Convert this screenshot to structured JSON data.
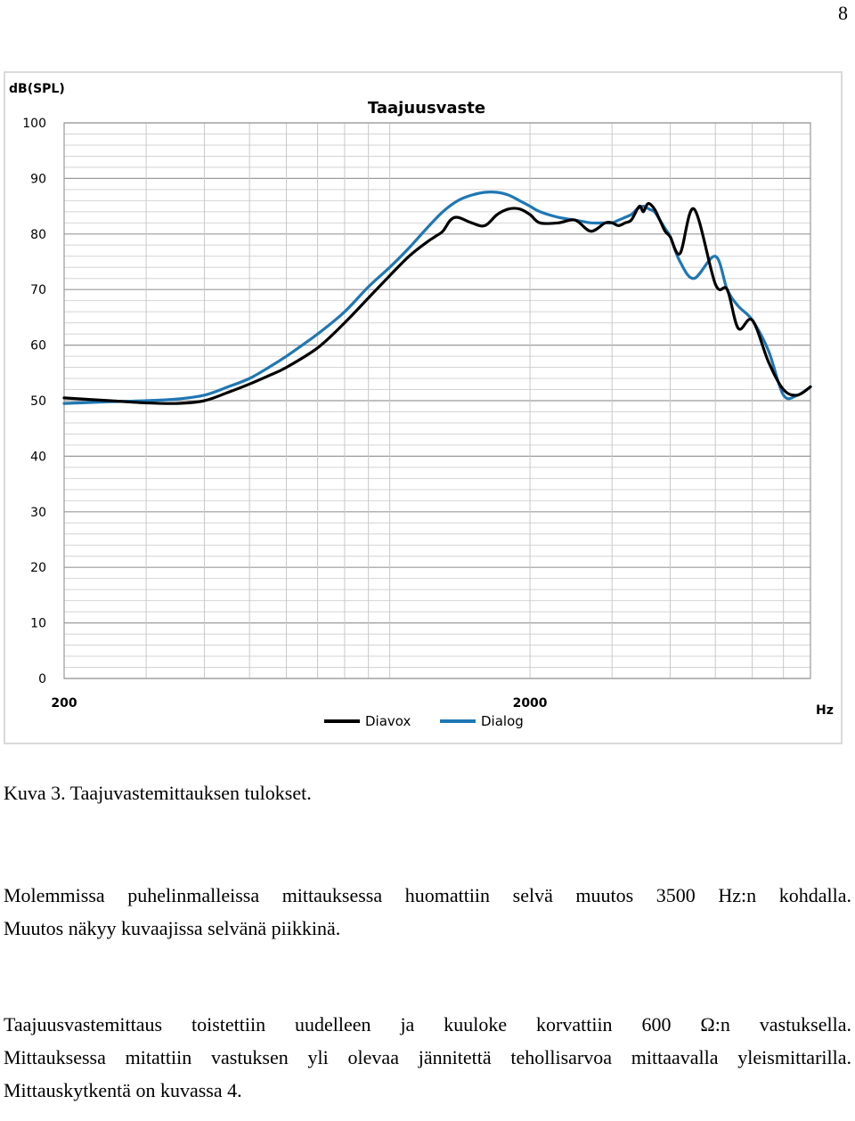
{
  "page_number": "8",
  "caption": "Kuva 3. Taajuvastemittauksen tulokset.",
  "paragraphs": [
    {
      "line1": "Molemmissa puhelinmalleissa mittauksessa huomattiin selvä muutos 3500 Hz:n kohdalla.",
      "line2": "Muutos näkyy kuvaajissa selvänä piikkinä."
    },
    {
      "line1": "Taajuusvastemittaus toistettiin uudelleen ja kuuloke korvattiin 600 Ω:n vastuksella.",
      "line2": "Mittauksessa mitattiin vastuksen yli olevaa jännitettä tehollisarvoa mittaavalla yleismittarilla.",
      "line3": "Mittauskytkentä on kuvassa 4."
    }
  ],
  "chart_data": {
    "type": "line",
    "title": "Taajuusvaste",
    "ylabel": "dB(SPL)",
    "xlabel": "Hz",
    "x_scale": "log",
    "xlim": [
      200,
      8000
    ],
    "ylim": [
      0,
      100
    ],
    "y_ticks": [
      "0",
      "10",
      "20",
      "30",
      "40",
      "50",
      "60",
      "70",
      "80",
      "90",
      "100"
    ],
    "x_ticks": [
      "200",
      "2000"
    ],
    "grid": true,
    "legend_position": "bottom",
    "series": [
      {
        "name": "Diavox",
        "color": "#000000",
        "x": [
          200,
          250,
          300,
          350,
          400,
          450,
          500,
          550,
          600,
          700,
          800,
          900,
          1000,
          1100,
          1200,
          1250,
          1300,
          1350,
          1400,
          1500,
          1600,
          1700,
          1800,
          1900,
          2000,
          2100,
          2300,
          2500,
          2700,
          2900,
          3000,
          3100,
          3200,
          3300,
          3400,
          3450,
          3500,
          3550,
          3600,
          3700,
          3800,
          3900,
          4000,
          4200,
          4500,
          5000,
          5300,
          5600,
          6000,
          6500,
          7000,
          7500,
          8000
        ],
        "values": [
          50.5,
          50,
          49.6,
          49.5,
          50,
          51.5,
          53,
          54.5,
          56,
          59.5,
          64,
          68.5,
          72.5,
          76,
          78.5,
          79.5,
          80.5,
          82.5,
          83,
          82,
          81.5,
          83.5,
          84.5,
          84.5,
          83.5,
          82,
          82,
          82.5,
          80.5,
          82,
          82,
          81.5,
          82,
          82.5,
          84.5,
          85,
          84,
          85,
          85.5,
          84.5,
          82.5,
          80.5,
          79.5,
          76.5,
          84.5,
          71,
          70,
          63,
          64.5,
          57,
          52,
          51,
          52.5
        ]
      },
      {
        "name": "Dialog",
        "color": "#1f77b4",
        "x": [
          200,
          250,
          300,
          350,
          400,
          450,
          500,
          550,
          600,
          700,
          800,
          900,
          1000,
          1100,
          1200,
          1300,
          1400,
          1500,
          1600,
          1700,
          1800,
          1900,
          2000,
          2100,
          2300,
          2500,
          2700,
          2900,
          3000,
          3100,
          3200,
          3300,
          3400,
          3500,
          3600,
          3700,
          3800,
          3900,
          4000,
          4200,
          4500,
          5000,
          5300,
          5600,
          6000,
          6500,
          7000,
          7500,
          8000
        ],
        "values": [
          49.5,
          49.8,
          50,
          50.3,
          51,
          52.5,
          54,
          56,
          58,
          62,
          66,
          70.5,
          74,
          77.5,
          81,
          84,
          86,
          87,
          87.5,
          87.5,
          87,
          86,
          85,
          84,
          83,
          82.5,
          82,
          82,
          82,
          82.5,
          83,
          83.5,
          84.5,
          85,
          84.5,
          84,
          82.5,
          81,
          79.5,
          75,
          72,
          76,
          70,
          67,
          64.5,
          59,
          51,
          51,
          52.5
        ]
      }
    ]
  }
}
